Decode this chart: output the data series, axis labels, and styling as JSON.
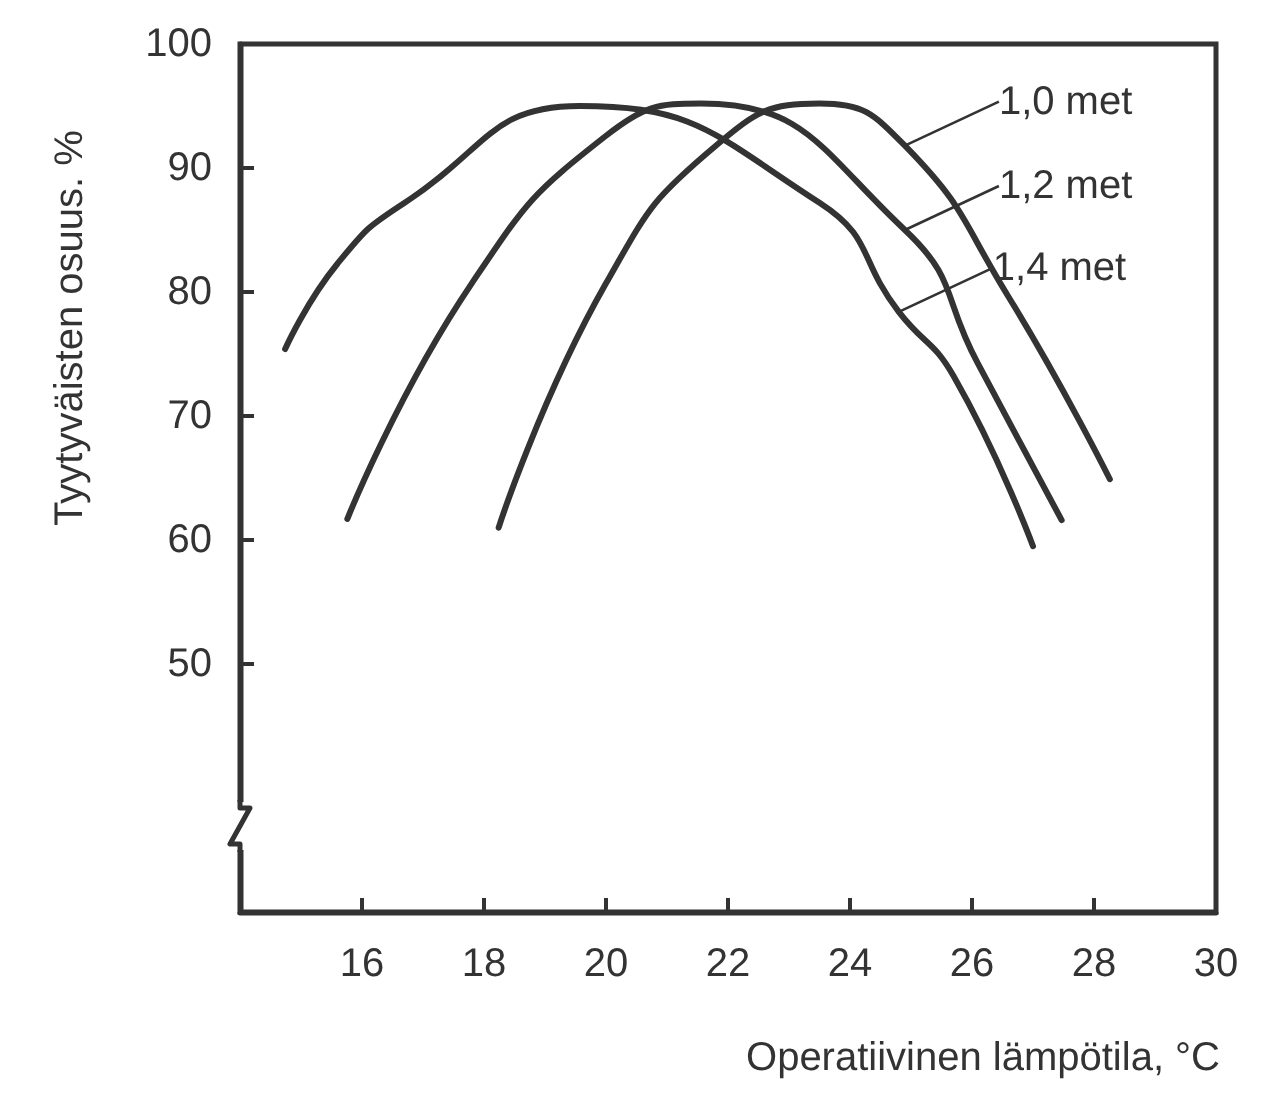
{
  "chart_data": {
    "type": "line",
    "xlabel": "Operatiivinen lämpötila, °C",
    "ylabel": "Tyytyväisten osuus. %",
    "xlim": [
      14,
      30
    ],
    "xticks": [
      16,
      18,
      20,
      22,
      24,
      26,
      28,
      30
    ],
    "ylim": [
      30,
      100
    ],
    "yticks": [
      50,
      60,
      70,
      80,
      90,
      100
    ],
    "grid": false,
    "legend": "top right",
    "marker": "none",
    "line_style": "solid",
    "series": [
      {
        "name": "1,0 met",
        "color": "#333333",
        "x": [
          18.24,
          20.0,
          21.8,
          23.5,
          24.9,
          26.6,
          28.26
        ],
        "values": [
          61.0,
          80.7,
          91.8,
          95.2,
          91.8,
          79.6,
          64.9
        ]
      },
      {
        "name": "1,2 met",
        "color": "#333333",
        "x": [
          15.76,
          17.8,
          20.0,
          21.56,
          24.9,
          26.1,
          27.47
        ],
        "values": [
          61.7,
          80.7,
          92.6,
          95.2,
          85.0,
          74.2,
          61.6
        ]
      },
      {
        "name": "1,4 met",
        "color": "#333333",
        "x": [
          14.74,
          15.6,
          16.7,
          19.57,
          23.5,
          24.8,
          25.7,
          27.0
        ],
        "values": [
          75.4,
          82.3,
          87.2,
          95.0,
          87.2,
          78.4,
          73.2,
          59.5
        ]
      }
    ]
  }
}
